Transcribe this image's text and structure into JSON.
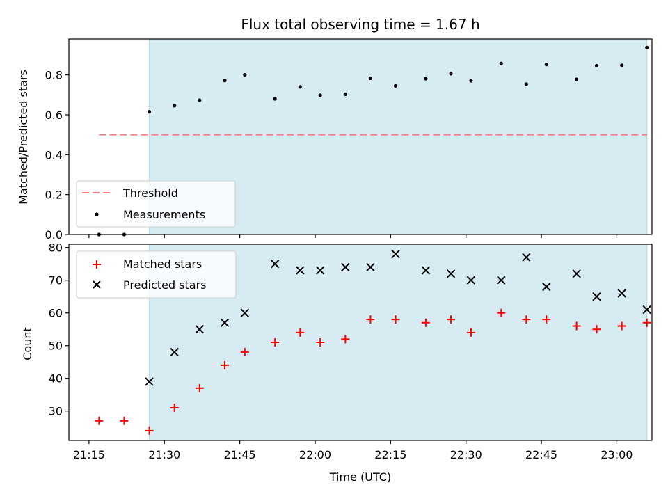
{
  "title": "Flux total observing time = 1.67 h",
  "colors": {
    "shade": "#add8e6",
    "threshold": "#f08080",
    "measurement": "#000000",
    "matched": "#ff0000",
    "predicted": "#000000"
  },
  "chart_data": [
    {
      "type": "scatter",
      "panel": "top",
      "ylabel": "Matched/Predicted stars",
      "xlim": [
        "21:11",
        "23:07"
      ],
      "ylim": [
        0,
        0.98
      ],
      "yticks": [
        "0.0",
        "0.2",
        "0.4",
        "0.6",
        "0.8"
      ],
      "observing_window": [
        "21:27",
        "23:06"
      ],
      "legend_position": "lower-left",
      "threshold": {
        "name": "Threshold",
        "y": 0.5,
        "x_range": [
          "21:17",
          "23:06"
        ]
      },
      "series": [
        {
          "name": "Measurements",
          "x": [
            "21:17",
            "21:22",
            "21:27",
            "21:32",
            "21:37",
            "21:42",
            "21:46",
            "21:52",
            "21:57",
            "22:01",
            "22:06",
            "22:11",
            "22:16",
            "22:22",
            "22:27",
            "22:31",
            "22:37",
            "22:42",
            "22:46",
            "22:52",
            "22:56",
            "23:01",
            "23:06"
          ],
          "y": [
            0.0,
            0.0,
            0.615,
            0.646,
            0.673,
            0.772,
            0.8,
            0.68,
            0.74,
            0.698,
            0.703,
            0.783,
            0.745,
            0.781,
            0.806,
            0.771,
            0.857,
            0.754,
            0.852,
            0.778,
            0.846,
            0.848,
            0.937
          ]
        }
      ]
    },
    {
      "type": "scatter",
      "panel": "bottom",
      "ylabel": "Count",
      "xlabel": "Time (UTC)",
      "xlim": [
        "21:11",
        "23:07"
      ],
      "ylim": [
        21,
        81
      ],
      "yticks": [
        "30",
        "40",
        "50",
        "60",
        "70",
        "80"
      ],
      "xticks": [
        "21:15",
        "21:30",
        "21:45",
        "22:00",
        "22:15",
        "22:30",
        "22:45",
        "23:00"
      ],
      "observing_window": [
        "21:27",
        "23:06"
      ],
      "legend_position": "upper-left",
      "series": [
        {
          "name": "Matched stars",
          "marker": "+",
          "x": [
            "21:17",
            "21:22",
            "21:27",
            "21:32",
            "21:37",
            "21:42",
            "21:46",
            "21:52",
            "21:57",
            "22:01",
            "22:06",
            "22:11",
            "22:16",
            "22:22",
            "22:27",
            "22:31",
            "22:37",
            "22:42",
            "22:46",
            "22:52",
            "22:56",
            "23:01",
            "23:06"
          ],
          "y": [
            27,
            27,
            24,
            31,
            37,
            44,
            48,
            51,
            54,
            51,
            52,
            58,
            58,
            57,
            58,
            54,
            60,
            58,
            58,
            56,
            55,
            56,
            57
          ]
        },
        {
          "name": "Predicted stars",
          "marker": "x",
          "x": [
            "21:27",
            "21:32",
            "21:37",
            "21:42",
            "21:46",
            "21:52",
            "21:57",
            "22:01",
            "22:06",
            "22:11",
            "22:16",
            "22:22",
            "22:27",
            "22:31",
            "22:37",
            "22:42",
            "22:46",
            "22:52",
            "22:56",
            "23:01",
            "23:06"
          ],
          "y": [
            39,
            48,
            55,
            57,
            60,
            75,
            73,
            73,
            74,
            74,
            78,
            73,
            72,
            70,
            70,
            77,
            68,
            72,
            65,
            66,
            61
          ]
        }
      ]
    }
  ]
}
